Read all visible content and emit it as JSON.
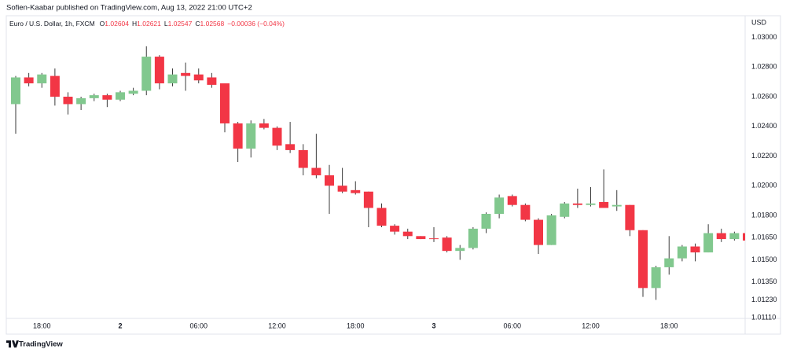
{
  "header": "Sofien-Kaabar published on TradingView.com, Aug 13, 2022 21:00 UTC+2",
  "footer": "TradingView",
  "chart_data": {
    "type": "candlestick",
    "legend": {
      "symbol": "Euro / U.S. Dollar, 1h, FXCM",
      "open_label": "O",
      "open": "1.02604",
      "high_label": "H",
      "high": "1.02621",
      "low_label": "L",
      "low": "1.02547",
      "close_label": "C",
      "close": "1.02568",
      "change": "−0.00036 (−0.04%)"
    },
    "y_unit": "USD",
    "up_color": "#81c88e",
    "down_color": "#f23645",
    "wick_color": "#3a3a3a",
    "legend_value_color": "#f23645",
    "categories": [
      null,
      null,
      "18:00",
      null,
      null,
      null,
      null,
      null,
      "2",
      null,
      null,
      null,
      null,
      null,
      "06:00",
      null,
      null,
      null,
      null,
      null,
      "12:00",
      null,
      null,
      null,
      null,
      null,
      "18:00",
      null,
      null,
      null,
      null,
      null,
      "3",
      null,
      null,
      null,
      null,
      null,
      "06:00",
      null,
      null,
      null,
      null,
      null,
      "12:00",
      null,
      null,
      null,
      null,
      null,
      "18:00",
      null,
      null,
      null,
      null,
      null,
      null
    ],
    "open": [
      1.0255,
      1.0273,
      1.0269,
      1.0274,
      1.026,
      1.0255,
      1.0259,
      1.0261,
      1.0258,
      1.0262,
      1.0264,
      1.0287,
      1.0269,
      1.0276,
      1.0275,
      1.0273,
      1.0269,
      1.0242,
      1.0225,
      1.0242,
      1.0239,
      1.0228,
      1.0224,
      1.0212,
      1.0207,
      1.02,
      1.0197,
      1.0196,
      1.0185,
      1.0173,
      1.0169,
      1.0166,
      1.01645,
      1.0165,
      1.0156,
      1.0158,
      1.0171,
      1.0181,
      1.0193,
      1.0187,
      1.0177,
      1.016,
      1.0179,
      1.0188,
      1.0187,
      1.0189,
      1.0186,
      1.0187,
      1.017,
      1.0131,
      1.0145,
      1.0151,
      1.0159,
      1.0155,
      1.0168,
      1.0164,
      1.0168
    ],
    "high": [
      1.0274,
      1.0276,
      1.0276,
      1.0279,
      1.0263,
      1.026,
      1.0262,
      1.0262,
      1.0264,
      1.0266,
      1.0294,
      1.0288,
      1.0279,
      1.0283,
      1.0279,
      1.0276,
      1.0269,
      1.0243,
      1.0244,
      1.0245,
      1.024,
      1.0243,
      1.0228,
      1.0235,
      1.0214,
      1.0212,
      1.0203,
      1.0196,
      1.0188,
      1.0174,
      1.0171,
      1.0166,
      1.0172,
      1.0166,
      1.016,
      1.0172,
      1.0182,
      1.0194,
      1.0194,
      1.0188,
      1.0178,
      1.0181,
      1.0189,
      1.0198,
      1.0199,
      1.0211,
      1.0197,
      1.0187,
      1.017,
      1.0146,
      1.0166,
      1.016,
      1.0161,
      1.0174,
      1.0171,
      1.0169,
      1.0168
    ],
    "low": [
      1.0235,
      1.0267,
      1.0266,
      1.0254,
      1.0248,
      1.0251,
      1.0257,
      1.0253,
      1.0257,
      1.0261,
      1.0261,
      1.0265,
      1.0267,
      1.0264,
      1.0269,
      1.0266,
      1.0236,
      1.0216,
      1.0219,
      1.0238,
      1.0224,
      1.0222,
      1.0207,
      1.0205,
      1.0181,
      1.0195,
      1.0194,
      1.0172,
      1.0172,
      1.0167,
      1.0164,
      1.0164,
      1.0162,
      1.0155,
      1.015,
      1.0157,
      1.0168,
      1.0178,
      1.0186,
      1.0176,
      1.0154,
      1.016,
      1.0178,
      1.0185,
      1.0186,
      1.0185,
      1.0183,
      1.0166,
      1.0125,
      1.0123,
      1.014,
      1.0149,
      1.0149,
      1.0155,
      1.0162,
      1.0163,
      1.0162
    ],
    "close": [
      1.0273,
      1.0269,
      1.0275,
      1.026,
      1.0255,
      1.0259,
      1.0261,
      1.0258,
      1.0263,
      1.0264,
      1.0287,
      1.0269,
      1.0275,
      1.0274,
      1.0271,
      1.0268,
      1.0242,
      1.0225,
      1.0242,
      1.0239,
      1.0227,
      1.0224,
      1.0212,
      1.0207,
      1.02,
      1.0196,
      1.0195,
      1.0185,
      1.0173,
      1.0169,
      1.0166,
      1.0164,
      1.0164,
      1.0156,
      1.0158,
      1.0171,
      1.0181,
      1.0192,
      1.0187,
      1.0177,
      1.016,
      1.018,
      1.0188,
      1.0187,
      1.0188,
      1.0185,
      1.0187,
      1.017,
      1.0131,
      1.0145,
      1.0151,
      1.0159,
      1.0155,
      1.0168,
      1.0164,
      1.0168,
      1.0163
    ],
    "ylim": [
      1.01105,
      1.03146
    ],
    "yticks": [
      {
        "value": 1.03,
        "label": "1.03000"
      },
      {
        "value": 1.028,
        "label": "1.02800"
      },
      {
        "value": 1.026,
        "label": "1.02600"
      },
      {
        "value": 1.024,
        "label": "1.02400"
      },
      {
        "value": 1.022,
        "label": "1.02200"
      },
      {
        "value": 1.02,
        "label": "1.02000"
      },
      {
        "value": 1.018,
        "label": "1.01800"
      },
      {
        "value": 1.0165,
        "label": "1.01650"
      },
      {
        "value": 1.015,
        "label": "1.01500"
      },
      {
        "value": 1.0135,
        "label": "1.01350"
      },
      {
        "value": 1.0123,
        "label": "1.01230"
      },
      {
        "value": 1.0111,
        "label": "1.01110"
      }
    ],
    "grid": false
  }
}
